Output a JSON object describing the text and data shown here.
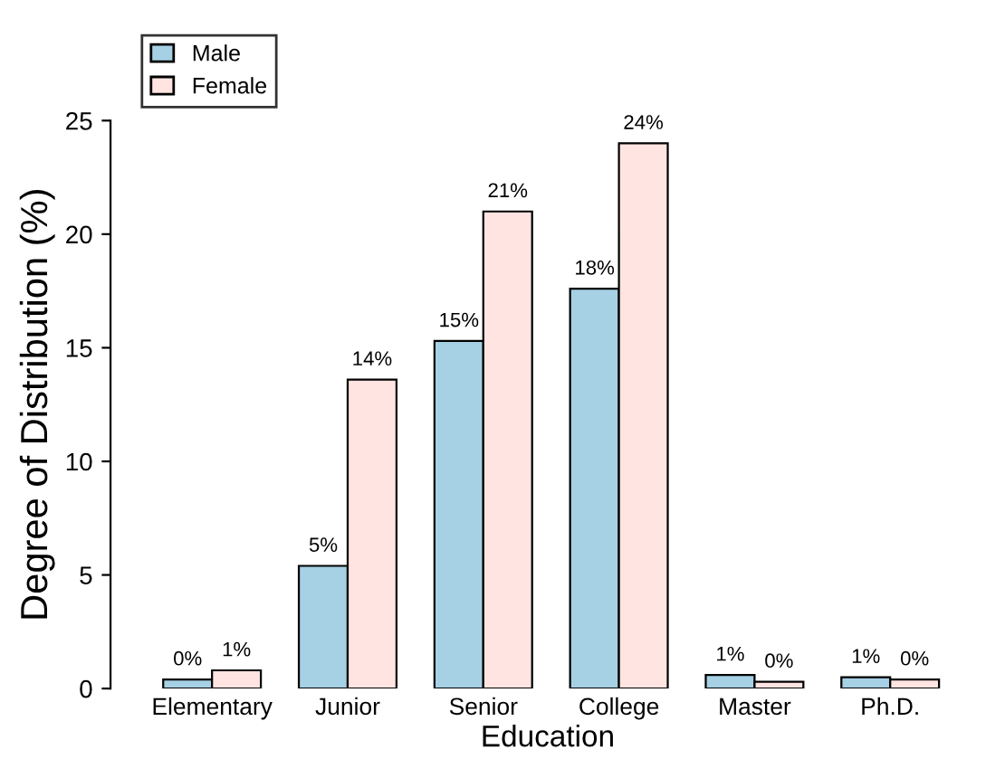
{
  "chart_data": {
    "type": "bar",
    "xlabel": "Education",
    "ylabel": "Degree of Distribution (%)",
    "categories": [
      "Elementary",
      "Junior",
      "Senior",
      "College",
      "Master",
      "Ph.D."
    ],
    "series": [
      {
        "name": "Male",
        "color": "#a6d0e4",
        "values": [
          0.4,
          5.4,
          15.3,
          17.6,
          0.6,
          0.5
        ],
        "value_labels": [
          "0%",
          "5%",
          "15%",
          "18%",
          "1%",
          "1%"
        ]
      },
      {
        "name": "Female",
        "color": "#ffe4e1",
        "values": [
          0.8,
          13.6,
          21.0,
          24.0,
          0.3,
          0.4
        ],
        "value_labels": [
          "1%",
          "14%",
          "21%",
          "24%",
          "0%",
          "0%"
        ]
      }
    ],
    "ylim": [
      0,
      25
    ],
    "yticks": [
      0,
      5,
      10,
      15,
      20,
      25
    ],
    "grid": false,
    "legend": "top left"
  }
}
